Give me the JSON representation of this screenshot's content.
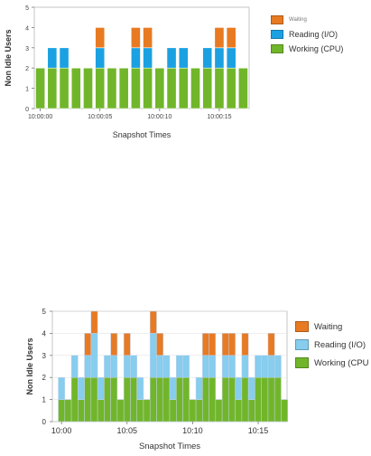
{
  "colors": {
    "waiting": "#e87a22",
    "reading": "#1ba1e2",
    "reading_light": "#86cdee",
    "working": "#71b62a",
    "axis": "#888888",
    "idle": "#c4d2ea"
  },
  "chart_data": [
    {
      "type": "bar",
      "stacked": true,
      "xlabel": "Snapshot Times",
      "ylabel": "Non Idle Users",
      "ylim": [
        0,
        5
      ],
      "yticks": [
        0,
        1,
        2,
        3,
        4,
        5
      ],
      "xticks": [
        "10:00:00",
        "10:00:05",
        "10:00:10",
        "10:00:15"
      ],
      "xtick_positions": [
        0,
        5,
        10,
        15
      ],
      "categories": [
        "10:00:00",
        "10:00:01",
        "10:00:02",
        "10:00:03",
        "10:00:04",
        "10:00:05",
        "10:00:06",
        "10:00:07",
        "10:00:08",
        "10:00:09",
        "10:00:10",
        "10:00:11",
        "10:00:12",
        "10:00:13",
        "10:00:14",
        "10:00:15",
        "10:00:16",
        "10:00:17"
      ],
      "series": [
        {
          "name": "Working (CPU)",
          "color_key": "working",
          "values": [
            2,
            2,
            2,
            2,
            2,
            2,
            2,
            2,
            2,
            2,
            2,
            2,
            2,
            2,
            2,
            2,
            2,
            2
          ]
        },
        {
          "name": "Reading  (I/O)",
          "color_key": "reading",
          "values": [
            0,
            1,
            1,
            0,
            0,
            1,
            0,
            0,
            1,
            1,
            0,
            1,
            1,
            0,
            1,
            1,
            1,
            0
          ]
        },
        {
          "name": "Waiting",
          "color_key": "waiting",
          "values": [
            0,
            0,
            0,
            0,
            0,
            1,
            0,
            0,
            1,
            1,
            0,
            0,
            0,
            0,
            0,
            1,
            1,
            0
          ]
        }
      ],
      "legend_position": "right"
    },
    {
      "type": "area",
      "stacked": true,
      "xlabel": "Snapshot Times",
      "ylabel": "Non Idle Users",
      "ylim": [
        0,
        5
      ],
      "yticks": [
        0,
        1,
        2,
        3,
        4,
        5
      ],
      "xticks": [
        "10:00",
        "10:05",
        "10:10",
        "10:15"
      ],
      "xtick_positions": [
        0,
        5,
        10,
        15
      ],
      "xlim": [
        -0.7,
        17.2
      ],
      "x": [
        0,
        0.5,
        1,
        1.5,
        2,
        2.5,
        3,
        3.5,
        4,
        4.5,
        5,
        5.5,
        6,
        6.5,
        7,
        7.5,
        8,
        8.5,
        9,
        9.5,
        10,
        10.5,
        11,
        11.5,
        12,
        12.5,
        13,
        13.5,
        14,
        14.5,
        15,
        15.5,
        16,
        16.5,
        17
      ],
      "series": [
        {
          "name": "Working (CPU)",
          "color_key": "working",
          "values": [
            1,
            1,
            2,
            1,
            2,
            2,
            1,
            2,
            2,
            1,
            2,
            2,
            1,
            1,
            2,
            2,
            2,
            1,
            2,
            2,
            1,
            1,
            2,
            2,
            1,
            2,
            2,
            1,
            2,
            1,
            2,
            2,
            2,
            2,
            1
          ]
        },
        {
          "name": "Reading  (I/O)",
          "color_key": "reading_light",
          "values": [
            1,
            0,
            1,
            1,
            1,
            2,
            1,
            1,
            1,
            0,
            1,
            1,
            1,
            0,
            2,
            1,
            1,
            1,
            1,
            1,
            0,
            1,
            1,
            1,
            0,
            1,
            1,
            1,
            1,
            1,
            1,
            1,
            1,
            1,
            0
          ]
        },
        {
          "name": "Waiting",
          "color_key": "waiting",
          "values": [
            0,
            0,
            0,
            0,
            1,
            1,
            0,
            0,
            1,
            0,
            1,
            0,
            0,
            0,
            1,
            1,
            0,
            0,
            0,
            0,
            0,
            0,
            1,
            1,
            0,
            1,
            1,
            0,
            1,
            0,
            0,
            0,
            1,
            0,
            0
          ]
        }
      ],
      "legend_position": "right"
    }
  ],
  "legend_top": {
    "items": [
      {
        "label": "Waiting",
        "color_key": "waiting"
      },
      {
        "label": "Reading  (I/O)",
        "color_key": "reading"
      },
      {
        "label": "Working (CPU)",
        "color_key": "working"
      }
    ]
  },
  "legend_bottom": {
    "items": [
      {
        "label": "Waiting",
        "color_key": "waiting"
      },
      {
        "label": "Reading  (I/O)",
        "color_key": "reading_light"
      },
      {
        "label": "Working (CPU",
        "color_key": "working"
      }
    ]
  }
}
